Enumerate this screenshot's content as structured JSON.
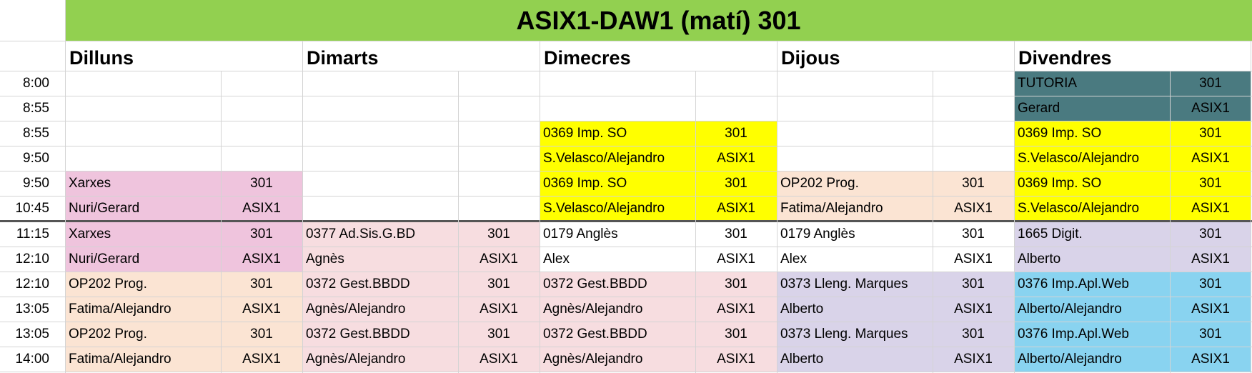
{
  "title": "ASIX1-DAW1 (matí) 301",
  "colors": {
    "title_bg": "#92d050",
    "tutoria": "#4a7a80",
    "yellow": "#ffff00",
    "pink": "#efc4dd",
    "salmon": "#f7dde0",
    "peach": "#fbe4d3",
    "lavender": "#d9d3e9",
    "blue": "#89d3f0"
  },
  "days": [
    "Dilluns",
    "Dimarts",
    "Dimecres",
    "Dijous",
    "Divendres"
  ],
  "slots": [
    {
      "start": "8:00",
      "end": "8:55"
    },
    {
      "start": "8:55",
      "end": "9:50"
    },
    {
      "start": "9:50",
      "end": "10:45"
    },
    {
      "start": "11:15",
      "end": "12:10"
    },
    {
      "start": "12:10",
      "end": "13:05"
    },
    {
      "start": "13:05",
      "end": "14:00"
    }
  ],
  "schedule": [
    [
      null,
      null,
      {
        "subject": "Xarxes",
        "teacher": "Nuri/Gerard",
        "room": "301",
        "group": "ASIX1",
        "color": "pink"
      },
      {
        "subject": "Xarxes",
        "teacher": "Nuri/Gerard",
        "room": "301",
        "group": "ASIX1",
        "color": "pink"
      },
      {
        "subject": "OP202 Prog.",
        "teacher": "Fatima/Alejandro",
        "room": "301",
        "group": "ASIX1",
        "color": "peach"
      },
      {
        "subject": "OP202 Prog.",
        "teacher": "Fatima/Alejandro",
        "room": "301",
        "group": "ASIX1",
        "color": "peach"
      }
    ],
    [
      null,
      null,
      null,
      {
        "subject": "0377 Ad.Sis.G.BD",
        "teacher": "Agnès",
        "room": "301",
        "group": "ASIX1",
        "color": "salmon"
      },
      {
        "subject": "0372 Gest.BBDD",
        "teacher": "Agnès/Alejandro",
        "room": "301",
        "group": "ASIX1",
        "color": "salmon"
      },
      {
        "subject": "0372 Gest.BBDD",
        "teacher": "Agnès/Alejandro",
        "room": "301",
        "group": "ASIX1",
        "color": "salmon"
      }
    ],
    [
      null,
      {
        "subject": "0369 Imp. SO",
        "teacher": "S.Velasco/Alejandro",
        "room": "301",
        "group": "ASIX1",
        "color": "yellow"
      },
      {
        "subject": "0369 Imp. SO",
        "teacher": "S.Velasco/Alejandro",
        "room": "301",
        "group": "ASIX1",
        "color": "yellow"
      },
      {
        "subject": "0179 Anglès",
        "teacher": "Alex",
        "room": "301",
        "group": "ASIX1",
        "color": "white"
      },
      {
        "subject": "0372 Gest.BBDD",
        "teacher": "Agnès/Alejandro",
        "room": "301",
        "group": "ASIX1",
        "color": "salmon"
      },
      {
        "subject": "0372 Gest.BBDD",
        "teacher": "Agnès/Alejandro",
        "room": "301",
        "group": "ASIX1",
        "color": "salmon"
      }
    ],
    [
      null,
      null,
      {
        "subject": "OP202 Prog.",
        "teacher": "Fatima/Alejandro",
        "room": "301",
        "group": "ASIX1",
        "color": "peach"
      },
      {
        "subject": "0179 Anglès",
        "teacher": "Alex",
        "room": "301",
        "group": "ASIX1",
        "color": "white"
      },
      {
        "subject": "0373 Lleng. Marques",
        "teacher": "Alberto",
        "room": "301",
        "group": "ASIX1",
        "color": "lavender"
      },
      {
        "subject": "0373 Lleng. Marques",
        "teacher": "Alberto",
        "room": "301",
        "group": "ASIX1",
        "color": "lavender"
      }
    ],
    [
      {
        "subject": "TUTORIA",
        "teacher": "Gerard",
        "room": "301",
        "group": "ASIX1",
        "color": "tutoria"
      },
      {
        "subject": "0369 Imp. SO",
        "teacher": "S.Velasco/Alejandro",
        "room": "301",
        "group": "ASIX1",
        "color": "yellow"
      },
      {
        "subject": "0369 Imp. SO",
        "teacher": "S.Velasco/Alejandro",
        "room": "301",
        "group": "ASIX1",
        "color": "yellow"
      },
      {
        "subject": "1665 Digit.",
        "teacher": "Alberto",
        "room": "301",
        "group": "ASIX1",
        "color": "lavender"
      },
      {
        "subject": "0376 Imp.Apl.Web",
        "teacher": "Alberto/Alejandro",
        "room": "301",
        "group": "ASIX1",
        "color": "blue"
      },
      {
        "subject": "0376 Imp.Apl.Web",
        "teacher": "Alberto/Alejandro",
        "room": "301",
        "group": "ASIX1",
        "color": "blue"
      }
    ]
  ]
}
